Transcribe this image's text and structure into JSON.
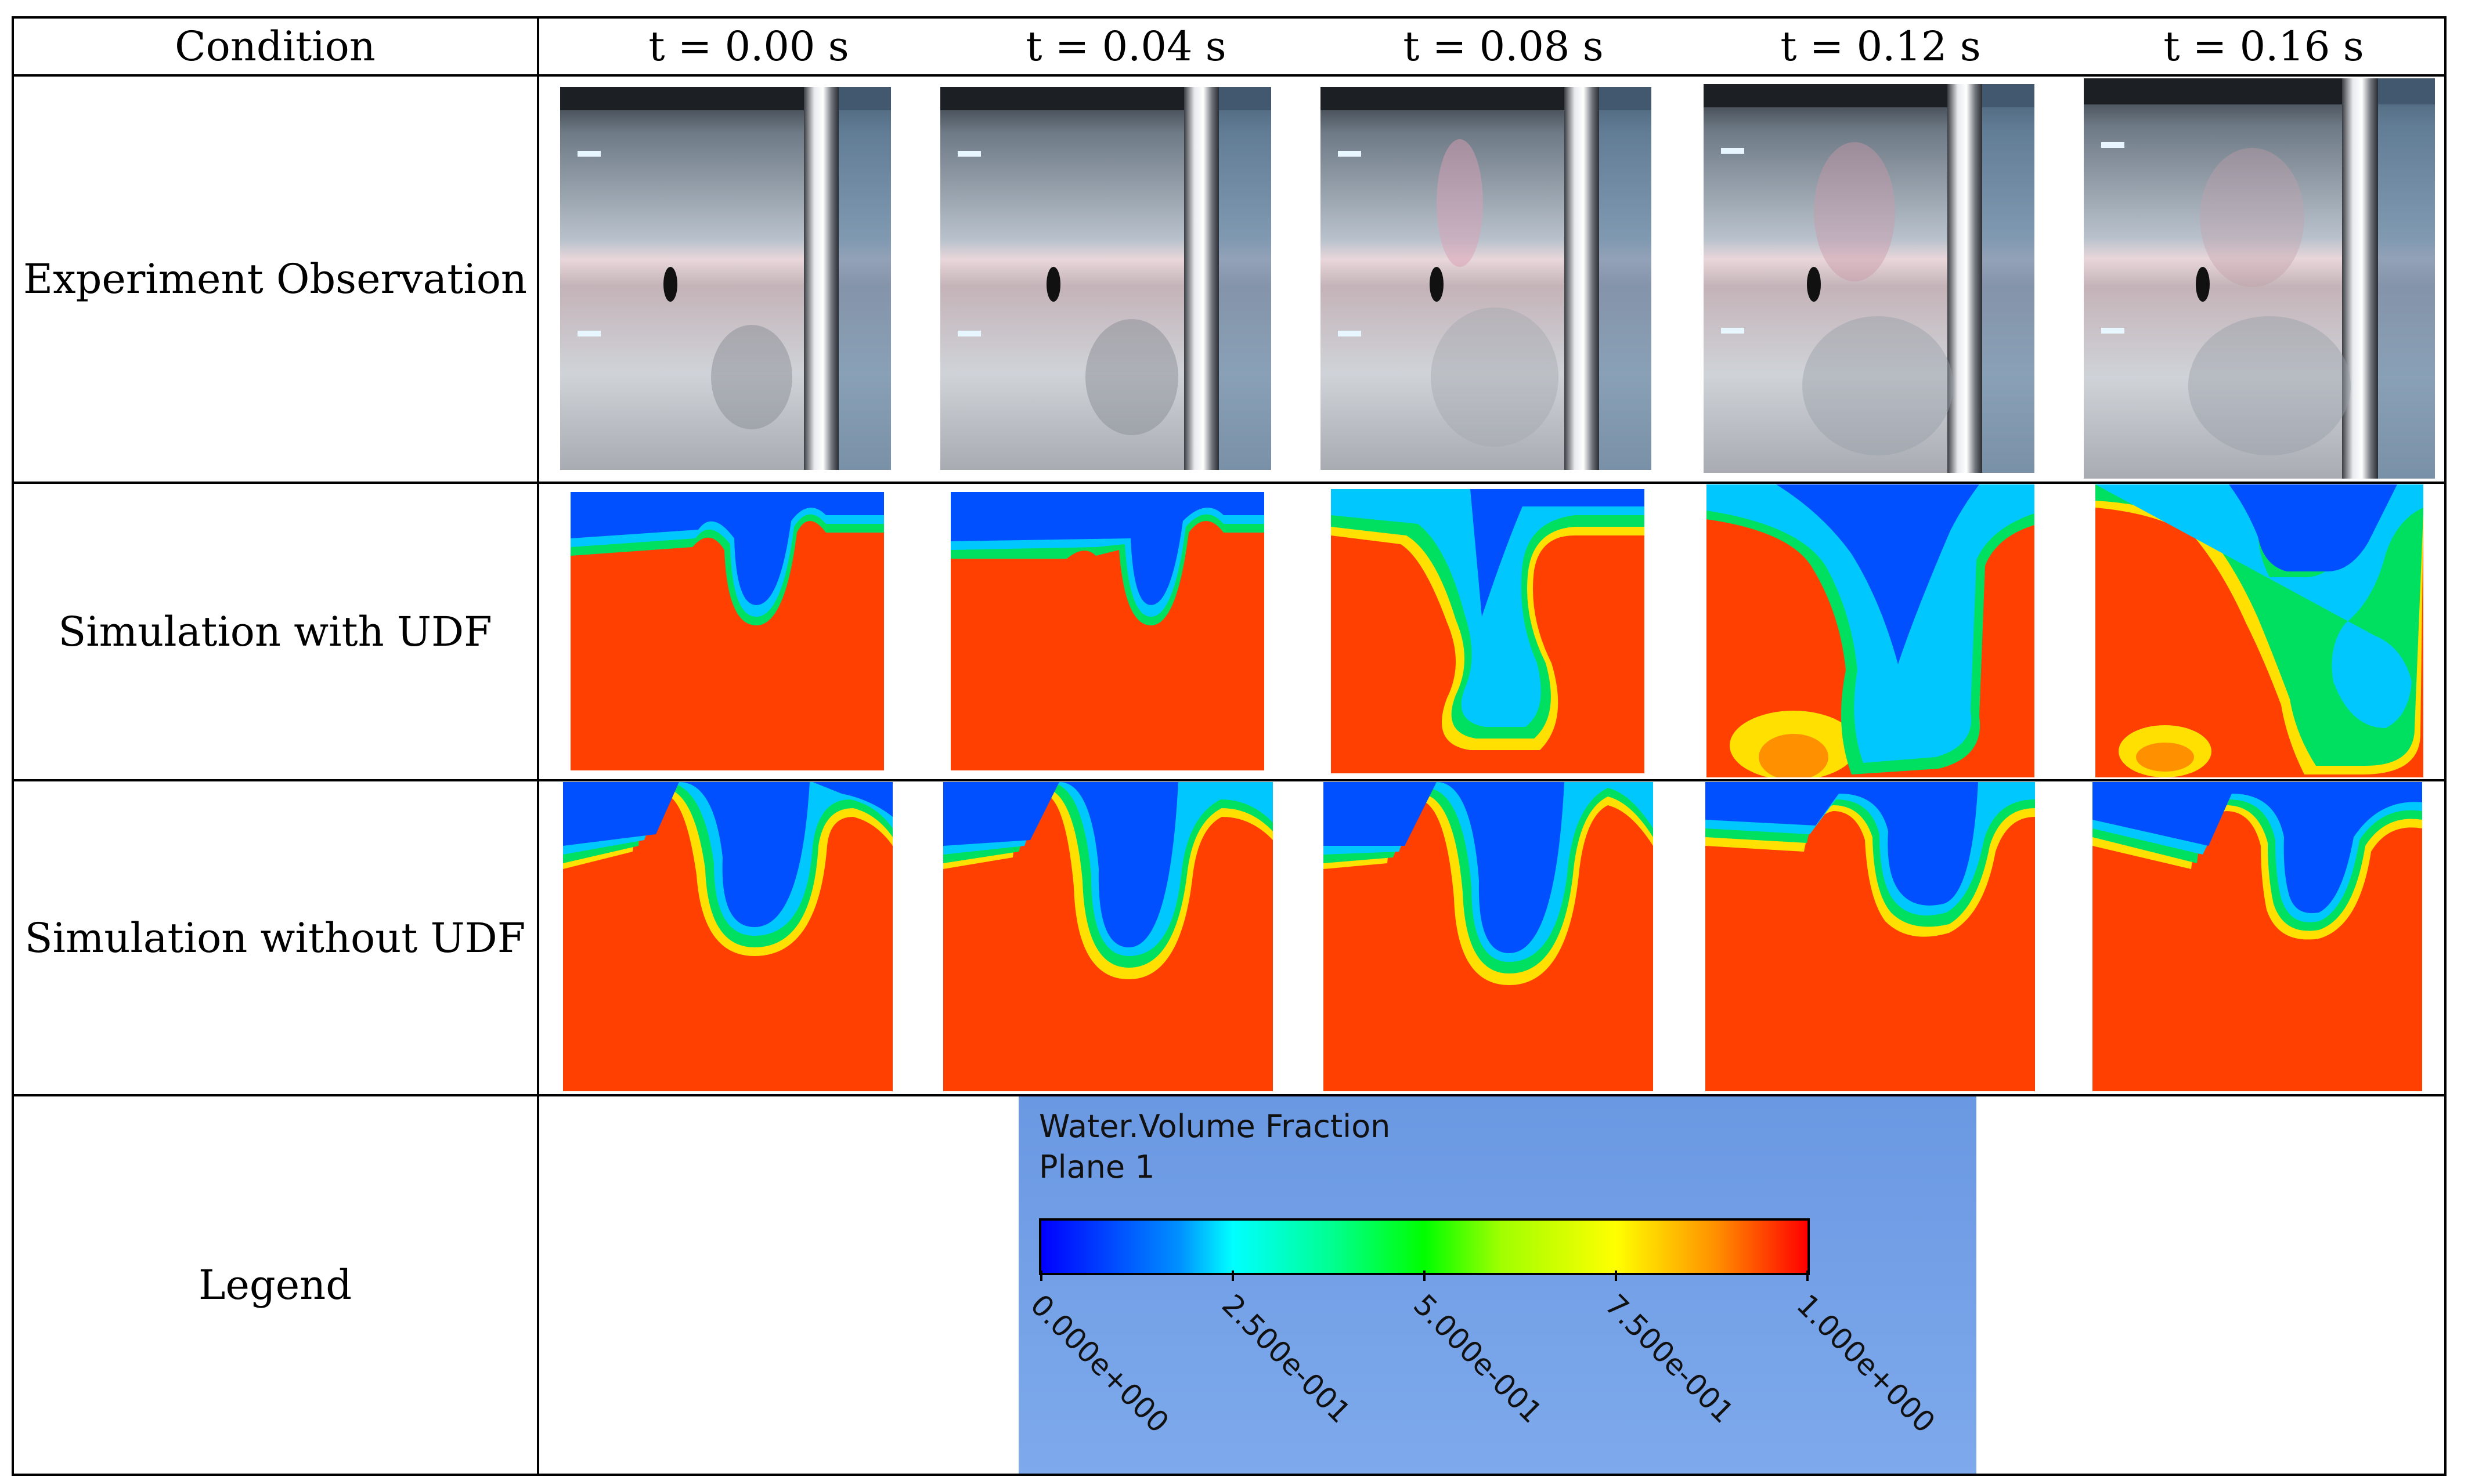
{
  "header": {
    "condition_label": "Condition",
    "times": [
      "t = 0.00 s",
      "t = 0.04 s",
      "t = 0.08 s",
      "t = 0.12 s",
      "t = 0.16 s"
    ]
  },
  "rows": [
    {
      "label": "Experiment Observation"
    },
    {
      "label": "Simulation with UDF"
    },
    {
      "label": "Simulation without UDF"
    },
    {
      "label": "Legend"
    }
  ],
  "legend": {
    "title": "Water.Volume Fraction",
    "subtitle": "Plane 1",
    "ticks": [
      "0.000e+000",
      "2.500e-001",
      "5.000e-001",
      "7.500e-001",
      "1.000e+000"
    ],
    "colors": [
      "#0000ff",
      "#00ffff",
      "#00ff00",
      "#ffff00",
      "#ff0000"
    ]
  },
  "palette": {
    "water": "#ff4000",
    "air": "#0050ff",
    "cyan": "#00c8ff",
    "green": "#00e060",
    "yellow": "#ffe000"
  }
}
